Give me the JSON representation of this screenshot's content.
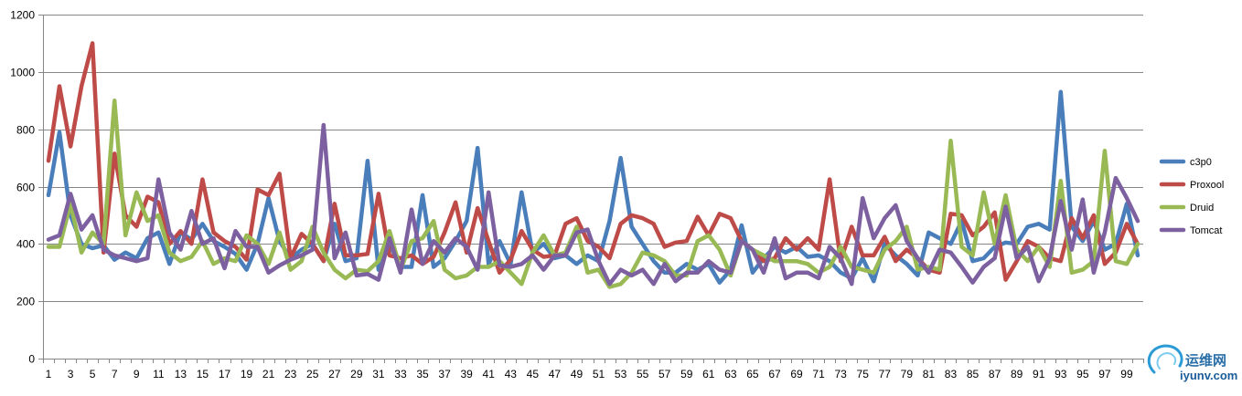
{
  "chart_data": {
    "type": "line",
    "title": "",
    "xlabel": "",
    "ylabel": "",
    "ylim": [
      0,
      1200
    ],
    "yticks": [
      0,
      200,
      400,
      600,
      800,
      1000,
      1200
    ],
    "x": [
      1,
      2,
      3,
      4,
      5,
      6,
      7,
      8,
      9,
      10,
      11,
      12,
      13,
      14,
      15,
      16,
      17,
      18,
      19,
      20,
      21,
      22,
      23,
      24,
      25,
      26,
      27,
      28,
      29,
      30,
      31,
      32,
      33,
      34,
      35,
      36,
      37,
      38,
      39,
      40,
      41,
      42,
      43,
      44,
      45,
      46,
      47,
      48,
      49,
      50,
      51,
      52,
      53,
      54,
      55,
      56,
      57,
      58,
      59,
      60,
      61,
      62,
      63,
      64,
      65,
      66,
      67,
      68,
      69,
      70,
      71,
      72,
      73,
      74,
      75,
      76,
      77,
      78,
      79,
      80,
      81,
      82,
      83,
      84,
      85,
      86,
      87,
      88,
      89,
      90,
      91,
      92,
      93,
      94,
      95,
      96,
      97,
      98,
      99,
      100
    ],
    "xtick_labels": [
      "1",
      "3",
      "5",
      "7",
      "9",
      "11",
      "13",
      "15",
      "17",
      "19",
      "21",
      "23",
      "25",
      "27",
      "29",
      "31",
      "33",
      "35",
      "37",
      "39",
      "41",
      "43",
      "45",
      "47",
      "49",
      "51",
      "53",
      "55",
      "57",
      "59",
      "61",
      "63",
      "65",
      "67",
      "69",
      "71",
      "73",
      "75",
      "77",
      "79",
      "81",
      "83",
      "85",
      "87",
      "89",
      "91",
      "93",
      "95",
      "97",
      "99"
    ],
    "grid": true,
    "legend_position": "right",
    "series": [
      {
        "name": "c3p0",
        "color": "#4A7EBB",
        "values": [
          570,
          790,
          500,
          400,
          385,
          395,
          345,
          370,
          350,
          420,
          440,
          330,
          440,
          415,
          470,
          410,
          390,
          365,
          310,
          400,
          560,
          410,
          350,
          380,
          400,
          340,
          470,
          340,
          350,
          690,
          310,
          400,
          320,
          320,
          570,
          320,
          350,
          410,
          480,
          735,
          330,
          410,
          330,
          580,
          370,
          400,
          350,
          360,
          330,
          360,
          340,
          480,
          700,
          460,
          400,
          340,
          300,
          300,
          330,
          310,
          330,
          265,
          310,
          465,
          300,
          350,
          390,
          370,
          390,
          355,
          360,
          340,
          300,
          280,
          350,
          270,
          400,
          360,
          330,
          290,
          440,
          420,
          400,
          480,
          340,
          350,
          390,
          405,
          400,
          460,
          470,
          450,
          930,
          460,
          410,
          480,
          380,
          400,
          540,
          360
        ]
      },
      {
        "name": "Proxool",
        "color": "#BE4B48",
        "values": [
          690,
          950,
          740,
          950,
          1100,
          370,
          715,
          500,
          460,
          565,
          545,
          400,
          445,
          400,
          625,
          440,
          410,
          390,
          345,
          590,
          570,
          645,
          350,
          435,
          400,
          340,
          540,
          360,
          360,
          365,
          575,
          360,
          350,
          360,
          330,
          355,
          440,
          545,
          370,
          525,
          410,
          300,
          345,
          445,
          380,
          355,
          360,
          470,
          490,
          410,
          390,
          350,
          470,
          500,
          490,
          470,
          390,
          405,
          410,
          495,
          430,
          505,
          490,
          410,
          380,
          340,
          350,
          420,
          380,
          420,
          380,
          625,
          340,
          460,
          360,
          360,
          425,
          340,
          380,
          350,
          310,
          300,
          505,
          500,
          430,
          460,
          510,
          275,
          340,
          410,
          390,
          350,
          340,
          490,
          420,
          500,
          330,
          370,
          470,
          400
        ]
      },
      {
        "name": "Druid",
        "color": "#98B954",
        "values": [
          390,
          390,
          540,
          370,
          440,
          400,
          900,
          430,
          580,
          480,
          500,
          370,
          340,
          355,
          410,
          330,
          350,
          340,
          430,
          400,
          330,
          440,
          310,
          340,
          460,
          370,
          310,
          280,
          310,
          305,
          340,
          445,
          310,
          410,
          420,
          480,
          310,
          280,
          290,
          320,
          320,
          340,
          300,
          260,
          370,
          430,
          360,
          370,
          460,
          300,
          310,
          250,
          260,
          300,
          370,
          360,
          340,
          290,
          290,
          410,
          430,
          380,
          290,
          410,
          380,
          360,
          340,
          340,
          340,
          330,
          300,
          320,
          390,
          320,
          310,
          300,
          380,
          410,
          460,
          310,
          320,
          310,
          760,
          390,
          360,
          580,
          400,
          570,
          380,
          340,
          390,
          320,
          620,
          300,
          310,
          340,
          725,
          340,
          330,
          400
        ]
      },
      {
        "name": "Tomcat",
        "color": "#7D60A0",
        "values": [
          415,
          430,
          575,
          450,
          500,
          380,
          360,
          350,
          340,
          350,
          625,
          440,
          380,
          515,
          400,
          420,
          315,
          445,
          390,
          390,
          300,
          325,
          345,
          360,
          380,
          815,
          350,
          440,
          290,
          295,
          275,
          420,
          300,
          520,
          330,
          410,
          370,
          420,
          390,
          310,
          580,
          325,
          320,
          330,
          360,
          310,
          360,
          360,
          440,
          450,
          340,
          260,
          310,
          290,
          310,
          260,
          330,
          270,
          300,
          300,
          340,
          310,
          300,
          410,
          380,
          300,
          420,
          280,
          300,
          300,
          280,
          390,
          350,
          260,
          560,
          420,
          490,
          535,
          410,
          350,
          300,
          380,
          370,
          320,
          265,
          320,
          350,
          530,
          350,
          390,
          270,
          350,
          550,
          380,
          555,
          300,
          440,
          630,
          560,
          480
        ]
      }
    ]
  },
  "watermark": {
    "cn_text": "运维网",
    "url_text": "iyunv.com"
  }
}
